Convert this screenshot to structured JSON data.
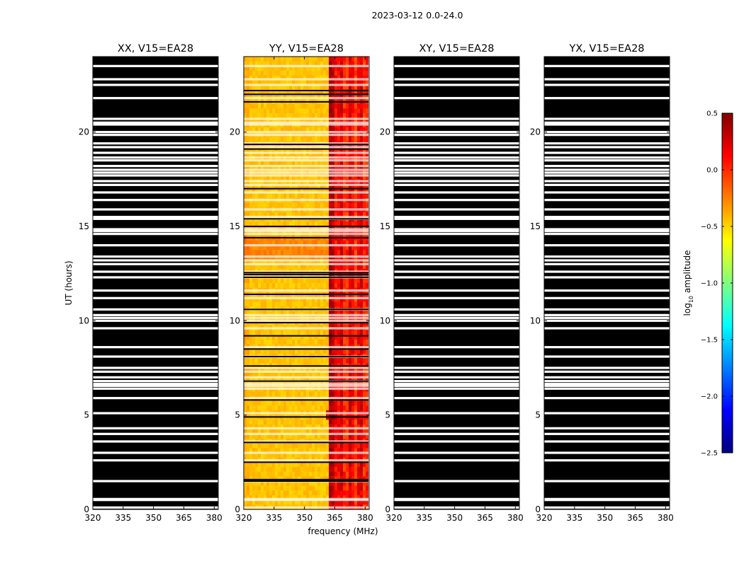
{
  "figure": {
    "suptitle": "2023-03-12 0.0-24.0",
    "xlabel": "frequency (MHz)",
    "ylabel": "UT (hours)"
  },
  "colors": {
    "masked": "#000000",
    "gap": "#ffffff",
    "colormap": [
      "#00007f",
      "#0000ff",
      "#007fff",
      "#00ffff",
      "#7fff7f",
      "#ffff00",
      "#ff7f00",
      "#ff0000",
      "#7f0000"
    ]
  },
  "chart_data": {
    "type": "heatmap",
    "x_ticks": [
      320,
      335,
      350,
      365,
      380
    ],
    "y_ticks": [
      0,
      5,
      10,
      15,
      20
    ],
    "xlim": [
      320,
      382
    ],
    "ylim": [
      0,
      24
    ],
    "gap_hours_ut": [
      0.1,
      0.5,
      0.55,
      1.5,
      2.6,
      3.0,
      3.6,
      4.0,
      4.3,
      5.1,
      5.9,
      6.4,
      6.55,
      6.65,
      6.8,
      7.0,
      7.3,
      7.5,
      8.1,
      8.6,
      9.6,
      10.0,
      10.15,
      10.3,
      10.6,
      11.2,
      11.6,
      12.3,
      12.6,
      13.0,
      13.2,
      13.4,
      14.0,
      14.6,
      14.75,
      14.85,
      15.4,
      15.5,
      15.9,
      16.4,
      16.8,
      17.2,
      17.4,
      17.7,
      17.85,
      18.0,
      18.2,
      18.5,
      18.65,
      18.9,
      19.2,
      19.4,
      19.85,
      20.0,
      20.4,
      20.5,
      20.7,
      21.8,
      22.5,
      22.8,
      23.5
    ],
    "panels": [
      {
        "title": "XX, V15=EA28",
        "state": "masked"
      },
      {
        "title": "YY, V15=EA28",
        "state": "data",
        "description_values": {
          "background_log_amplitude": -0.45,
          "band_365_382_log_amplitude": 0.1,
          "peak_log_amplitude": 0.5,
          "peak_frequency_mhz": 364,
          "peak_ut_hours": 5.0,
          "enhanced_ut_range": [
            13.2,
            14.5
          ],
          "flagged_ut_hours": [
            1.5,
            1.58,
            2.5,
            3.55,
            4.9,
            5.8,
            6.8,
            7.6,
            8.1,
            8.5,
            9.2,
            9.9,
            10.6,
            11.4,
            12.3,
            12.45,
            12.55,
            14.4,
            15.0,
            15.4,
            17.0,
            19.1,
            19.35,
            21.6,
            22.0,
            22.2
          ]
        }
      },
      {
        "title": "XY, V15=EA28",
        "state": "masked"
      },
      {
        "title": "YX, V15=EA28",
        "state": "masked"
      }
    ],
    "colorbar": {
      "label": "log",
      "label_sub": "10",
      "label_suffix": "amplitude",
      "min": -2.5,
      "max": 0.5,
      "tick_values": [
        0.5,
        0.0,
        -0.5,
        -1.0,
        -1.5,
        -2.0,
        -2.5
      ],
      "tick_labels": [
        "0.5",
        "0.0",
        "−0.5",
        "−1.0",
        "−1.5",
        "−2.0",
        "−2.5"
      ]
    }
  }
}
